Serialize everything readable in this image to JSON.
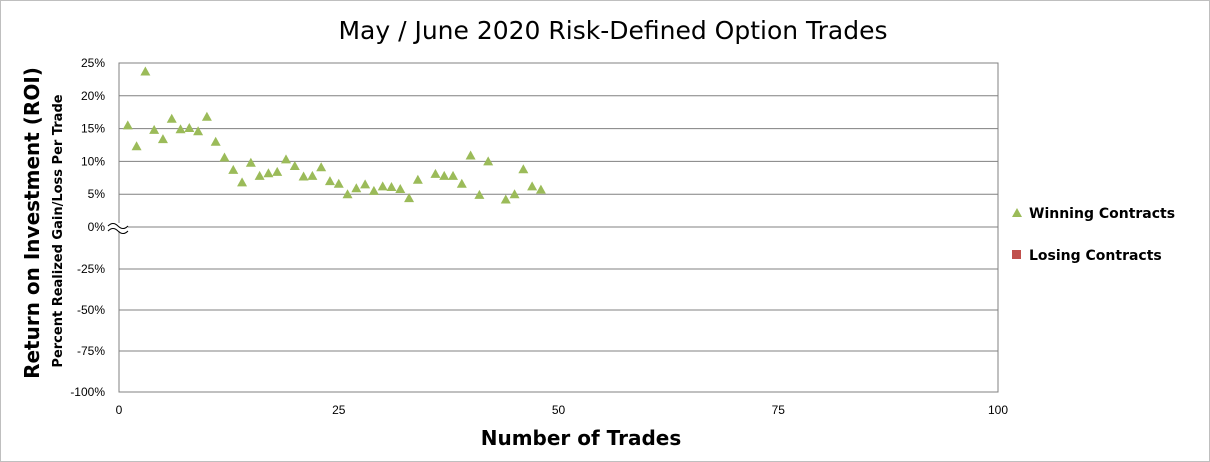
{
  "chart_data": {
    "type": "scatter",
    "title": "May / June 2020 Risk-Defined Option Trades",
    "ylabel": "Return on Investment (ROI)",
    "ylabel_sub": "Percent Realized Gain/Loss Per Trade",
    "xlabel": "Number of Trades",
    "xlim": [
      0,
      100
    ],
    "x_ticks": [
      "0",
      "25",
      "50",
      "75",
      "100"
    ],
    "x_tick_values": [
      0,
      25,
      50,
      75,
      100
    ],
    "y_ticks_upper": [
      "25%",
      "20%",
      "15%",
      "10%",
      "5%",
      "0%"
    ],
    "y_tick_values_upper": [
      25,
      20,
      15,
      10,
      5,
      0
    ],
    "y_ticks_lower": [
      "-25%",
      "-50%",
      "-75%",
      "-100%"
    ],
    "y_tick_values_lower": [
      -25,
      -50,
      -75,
      -100
    ],
    "axis_break": "broken y-axis between 0% and -25%",
    "grid": true,
    "legend_position": "right",
    "series": [
      {
        "name": "Winning Contracts",
        "marker": "triangle",
        "color": "#9bbb59",
        "points": [
          [
            1,
            15.5
          ],
          [
            2,
            12.3
          ],
          [
            3,
            23.7
          ],
          [
            4,
            14.8
          ],
          [
            5,
            13.4
          ],
          [
            6,
            16.5
          ],
          [
            7,
            14.9
          ],
          [
            8,
            15.1
          ],
          [
            9,
            14.6
          ],
          [
            10,
            16.8
          ],
          [
            11,
            13.0
          ],
          [
            12,
            10.6
          ],
          [
            13,
            8.7
          ],
          [
            14,
            6.8
          ],
          [
            15,
            9.8
          ],
          [
            16,
            7.8
          ],
          [
            17,
            8.2
          ],
          [
            18,
            8.4
          ],
          [
            19,
            10.3
          ],
          [
            20,
            9.3
          ],
          [
            21,
            7.7
          ],
          [
            22,
            7.8
          ],
          [
            23,
            9.1
          ],
          [
            24,
            7.0
          ],
          [
            25,
            6.6
          ],
          [
            26,
            5.0
          ],
          [
            27,
            5.9
          ],
          [
            28,
            6.5
          ],
          [
            29,
            5.5
          ],
          [
            30,
            6.2
          ],
          [
            31,
            6.1
          ],
          [
            32,
            5.8
          ],
          [
            33,
            4.4
          ],
          [
            34,
            7.2
          ],
          [
            36,
            8.1
          ],
          [
            37,
            7.8
          ],
          [
            38,
            7.8
          ],
          [
            39,
            6.6
          ],
          [
            40,
            10.9
          ],
          [
            41,
            4.9
          ],
          [
            42,
            10.0
          ],
          [
            44,
            4.2
          ],
          [
            45,
            5.0
          ],
          [
            46,
            8.8
          ],
          [
            47,
            6.2
          ],
          [
            48,
            5.7
          ]
        ]
      },
      {
        "name": "Losing Contracts",
        "marker": "square",
        "color": "#c0504d",
        "points": []
      }
    ]
  }
}
